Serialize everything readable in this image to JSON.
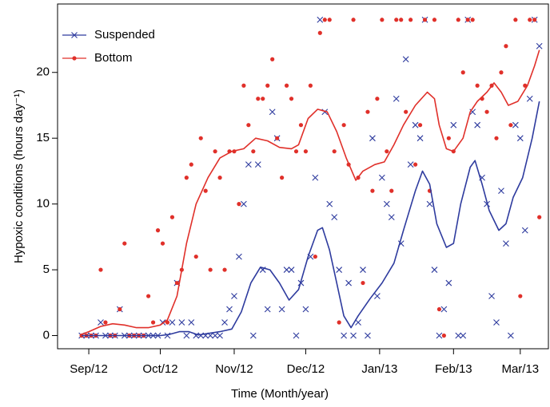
{
  "chart_data": {
    "type": "scatter",
    "xlabel": "Time (Month/year)",
    "ylabel": "Hypoxic conditions  (hours day⁻¹)",
    "xlim": [
      -13.1,
      192.8
    ],
    "ylim": [
      -1,
      25.2
    ],
    "xticks": [
      {
        "value": 0,
        "label": "Sep/12"
      },
      {
        "value": 30,
        "label": "Oct/12"
      },
      {
        "value": 61,
        "label": "Nov/12"
      },
      {
        "value": 91,
        "label": "Dec/12"
      },
      {
        "value": 122,
        "label": "Jan/13"
      },
      {
        "value": 153,
        "label": "Feb/13"
      },
      {
        "value": 181,
        "label": "Mar/13"
      }
    ],
    "yticks": [
      0,
      5,
      10,
      15,
      20
    ],
    "legend": "top-left",
    "x": [
      -3,
      -1,
      1,
      3,
      5,
      7,
      9,
      11,
      13,
      15,
      17,
      19,
      21,
      23,
      25,
      27,
      29,
      31,
      33,
      35,
      37,
      39,
      41,
      43,
      45,
      47,
      49,
      51,
      53,
      55,
      57,
      59,
      61,
      63,
      65,
      67,
      69,
      71,
      73,
      75,
      77,
      79,
      81,
      83,
      85,
      87,
      89,
      91,
      93,
      95,
      97,
      99,
      101,
      103,
      105,
      107,
      109,
      111,
      113,
      115,
      117,
      119,
      121,
      123,
      125,
      127,
      129,
      131,
      133,
      135,
      137,
      139,
      141,
      143,
      145,
      147,
      149,
      151,
      153,
      155,
      157,
      159,
      161,
      163,
      165,
      167,
      169,
      171,
      173,
      175,
      177,
      179,
      181,
      183,
      185,
      187,
      189
    ],
    "series": [
      {
        "name": "Suspended",
        "color": "#2e3b9e",
        "marker": "x",
        "values": [
          0,
          0,
          0,
          0,
          1,
          0,
          0,
          0,
          2,
          0,
          0,
          0,
          0,
          0,
          0,
          0,
          0,
          1,
          0,
          1,
          4,
          1,
          0,
          1,
          0,
          0,
          0,
          0,
          0,
          0,
          1,
          2,
          3,
          6,
          10,
          13,
          0,
          13,
          5,
          2,
          17,
          15,
          2,
          5,
          5,
          0,
          4,
          2,
          6,
          12,
          24,
          17,
          10,
          9,
          5,
          0,
          4,
          0,
          1,
          5,
          0,
          15,
          3,
          12,
          10,
          9,
          18,
          7,
          21,
          13,
          16,
          15,
          24,
          10,
          5,
          0,
          2,
          4,
          16,
          0,
          0,
          24,
          17,
          16,
          12,
          10,
          3,
          1,
          11,
          7,
          0,
          16,
          15,
          8,
          18,
          24,
          22
        ],
        "smooth_x": [
          -3,
          10,
          20,
          30,
          34,
          38,
          42,
          46,
          55,
          60,
          64,
          68,
          72,
          76,
          80,
          84,
          88,
          92,
          96,
          98,
          101,
          104,
          107,
          110,
          113,
          118,
          123,
          128,
          132,
          137,
          140,
          143,
          146,
          150,
          153,
          156,
          160,
          162,
          165,
          168,
          172,
          175,
          178,
          182,
          186,
          189
        ],
        "smooth_values": [
          0,
          0,
          0,
          0,
          0.1,
          0.3,
          0.3,
          0.05,
          0.3,
          0.5,
          1.8,
          4,
          5.2,
          5,
          4,
          2.7,
          3.5,
          6,
          8,
          8.2,
          6.5,
          4,
          1.5,
          0.6,
          1.5,
          2.8,
          4,
          5.5,
          8,
          11,
          12.5,
          11.5,
          8.5,
          6.7,
          7,
          10,
          12.8,
          13.3,
          11.5,
          9.5,
          8,
          8.5,
          10.5,
          12,
          15,
          17.8
        ]
      },
      {
        "name": "Bottom",
        "color": "#e0302a",
        "marker": "dot",
        "values": [
          0,
          0,
          0,
          0,
          5,
          1,
          0,
          0,
          2,
          7,
          0,
          0,
          0,
          0,
          3,
          1,
          8,
          7,
          1,
          9,
          4,
          5,
          12,
          13,
          6,
          15,
          11,
          5,
          14,
          12,
          5,
          14,
          14,
          10,
          19,
          16,
          14,
          18,
          18,
          19,
          21,
          15,
          12,
          19,
          18,
          14,
          16,
          14,
          19,
          6,
          23,
          24,
          24,
          14,
          1,
          16,
          13,
          24,
          12,
          4,
          17,
          11,
          18,
          24,
          14,
          11,
          24,
          24,
          17,
          24,
          13,
          16,
          24,
          11,
          24,
          2,
          0,
          15,
          14,
          24,
          20,
          24,
          24,
          19,
          18,
          17,
          19,
          15,
          20,
          22,
          16,
          24,
          3,
          19,
          24,
          24,
          9
        ],
        "smooth_x": [
          -3,
          0,
          5,
          10,
          15,
          20,
          25,
          30,
          33,
          37,
          41,
          45,
          50,
          55,
          60,
          65,
          70,
          75,
          80,
          85,
          88,
          92,
          96,
          100,
          104,
          108,
          112,
          115,
          120,
          124,
          128,
          132,
          137,
          142,
          145,
          147,
          150,
          153,
          157,
          160,
          163,
          167,
          170,
          173,
          176,
          180,
          184,
          187,
          189
        ],
        "smooth_values": [
          0.1,
          0.3,
          0.7,
          0.9,
          0.8,
          0.6,
          0.6,
          0.8,
          1.2,
          3,
          7,
          10,
          12,
          13.5,
          14,
          14.2,
          15,
          14.8,
          14.3,
          14.2,
          14.5,
          16.5,
          17.2,
          17,
          15.5,
          13.5,
          11.8,
          12.5,
          13,
          13.2,
          14.5,
          16,
          17.5,
          18.5,
          18,
          16,
          14.2,
          14,
          15,
          17,
          17.8,
          18.5,
          19.2,
          18.5,
          17.5,
          17.8,
          19,
          20.5,
          21.7
        ]
      }
    ]
  }
}
